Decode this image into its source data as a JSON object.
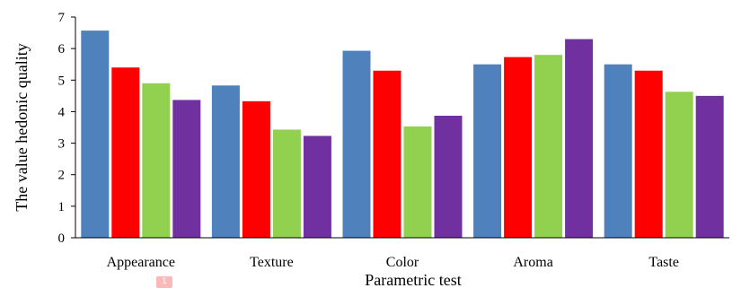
{
  "chart_data": {
    "type": "bar",
    "title": "",
    "xlabel": "Parametric test",
    "ylabel": "The value hedonic quality",
    "ylim": [
      0,
      7
    ],
    "yticks": [
      "0",
      "1",
      "2",
      "3",
      "4",
      "5",
      "6",
      "7"
    ],
    "categories": [
      "Appearance",
      "Texture",
      "Color",
      "Aroma",
      "Taste"
    ],
    "grid": false,
    "legend": "none",
    "series": [
      {
        "color": "#4f81bd",
        "values": [
          6.57,
          4.83,
          5.93,
          5.5,
          5.5
        ]
      },
      {
        "color": "#ff0000",
        "values": [
          5.4,
          4.33,
          5.3,
          5.73,
          5.3
        ]
      },
      {
        "color": "#92d050",
        "values": [
          4.9,
          3.43,
          3.53,
          5.8,
          4.63
        ]
      },
      {
        "color": "#7030a0",
        "values": [
          4.37,
          3.23,
          3.87,
          6.3,
          4.5
        ]
      }
    ]
  },
  "badge": {
    "text": "1"
  }
}
